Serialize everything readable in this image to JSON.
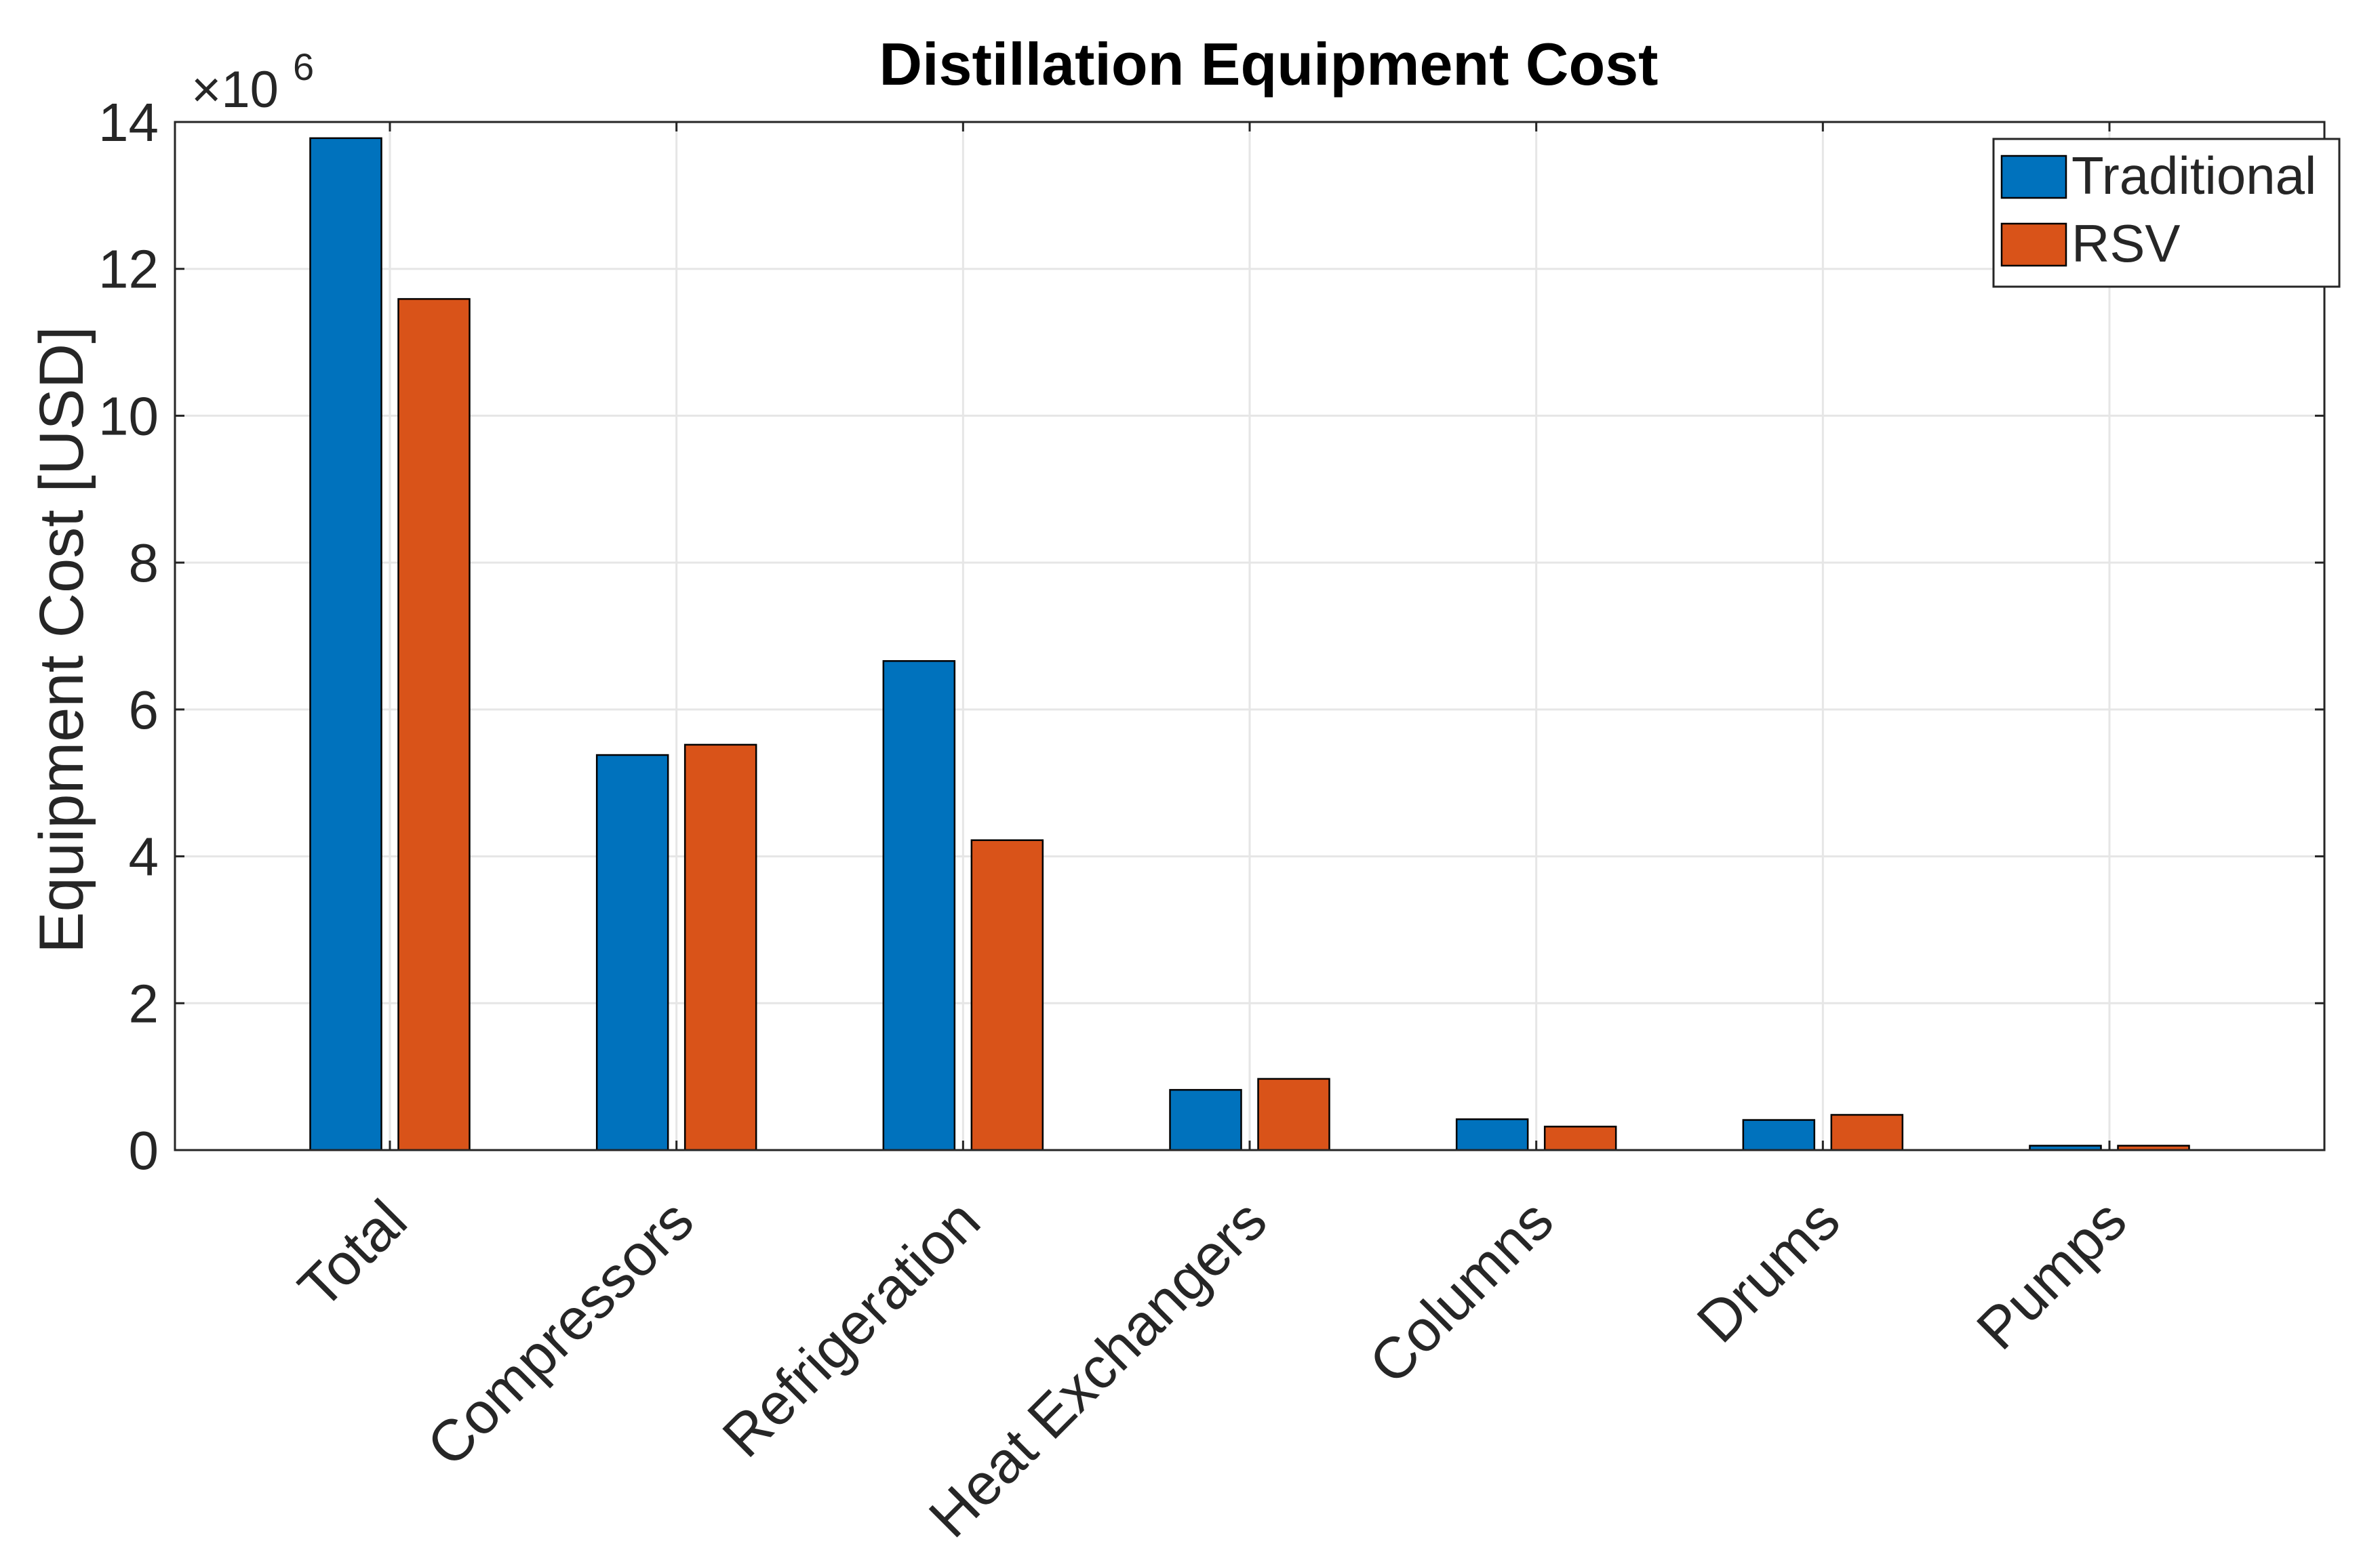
{
  "chart_data": {
    "type": "bar",
    "title": "Distillation Equipment Cost",
    "xlabel": "",
    "ylabel": "Equipment Cost [USD]",
    "exponent_prefix": "×10",
    "exponent_power": "6",
    "categories": [
      "Total",
      "Compressors",
      "Refrigeration",
      "Heat Exchangers",
      "Columns",
      "Drums",
      "Pumps"
    ],
    "series": [
      {
        "name": "Traditional",
        "color": "#0072BD",
        "values": [
          13.78,
          5.38,
          6.66,
          0.82,
          0.42,
          0.41,
          0.06
        ]
      },
      {
        "name": "RSV",
        "color": "#D95319",
        "values": [
          11.59,
          5.52,
          4.22,
          0.97,
          0.32,
          0.48,
          0.06
        ]
      }
    ],
    "ylim": [
      0,
      14
    ],
    "yticks": [
      0,
      2,
      4,
      6,
      8,
      10,
      12,
      14
    ],
    "ytick_labels": [
      "0",
      "2",
      "4",
      "6",
      "8",
      "10",
      "12",
      "14"
    ],
    "grid": true,
    "legend": {
      "position": "top-right",
      "entries": [
        "Traditional",
        "RSV"
      ]
    }
  }
}
